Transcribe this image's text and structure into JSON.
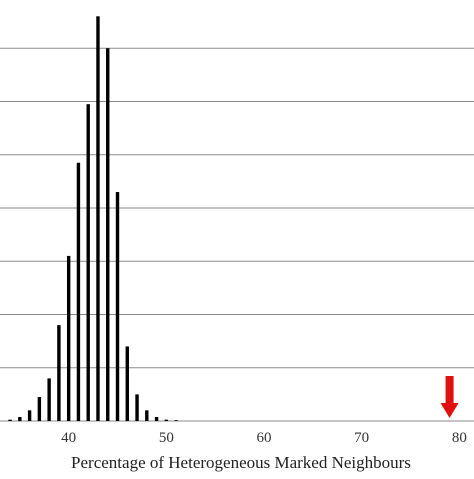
{
  "chart_data": {
    "type": "bar",
    "title": "",
    "xlabel": "Percentage of Heterogeneous Marked Neighbours",
    "ylabel": "",
    "xlim": [
      30,
      81.5
    ],
    "ylim": [
      0,
      16
    ],
    "grid": "horizontal",
    "x_ticks": [
      40,
      50,
      60,
      70,
      80
    ],
    "x": [
      34,
      35,
      36,
      37,
      38,
      39,
      40,
      41,
      42,
      43,
      44,
      45,
      46,
      47,
      48,
      49,
      50,
      51
    ],
    "values": [
      0.05,
      0.15,
      0.4,
      0.9,
      1.6,
      3.6,
      6.2,
      9.7,
      11.9,
      15.2,
      14.0,
      8.6,
      2.8,
      1.0,
      0.4,
      0.15,
      0.05,
      0.03
    ],
    "bar_color": "#000000",
    "grid_color": "#8a8a8a",
    "annotation": {
      "icon": "down-arrow-icon",
      "x": 79,
      "color": "#e01010"
    }
  }
}
